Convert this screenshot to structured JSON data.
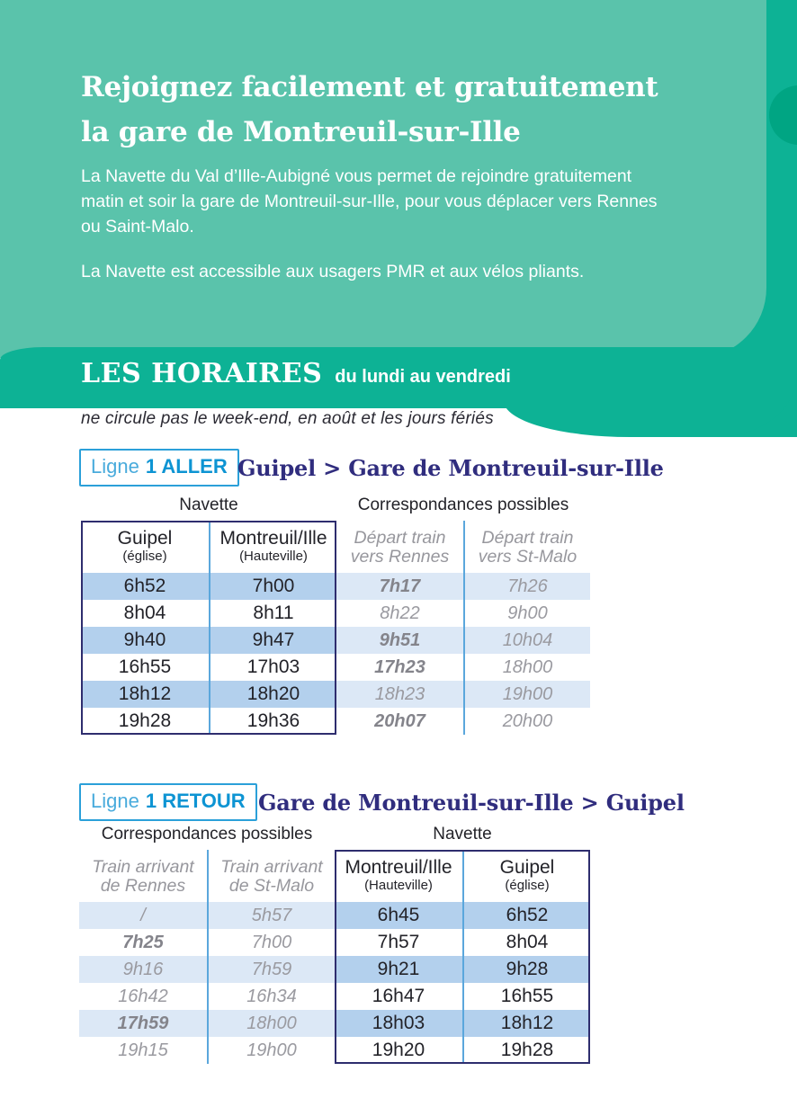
{
  "colors": {
    "teal": "#5ac3ab",
    "green": "#0db295",
    "dark_green_circle": "#00a583",
    "heading_indigo": "#302d7e",
    "badge_blue": "#0d94d3",
    "badge_blue_light": "#49abdc",
    "table_border": "#2e2d6e",
    "divider_blue": "#5ba7dc",
    "shade_strong": "#b3d0ed",
    "shade_light": "#dce8f6",
    "text_dark": "#232329",
    "text_gray": "#97979d"
  },
  "hero": {
    "title_line1": "Rejoignez facilement et gratuitement",
    "title_line2": "la gare de Montreuil-sur-Ille",
    "paragraph1_lines": [
      "La Navette du Val d’Ille-Aubigné vous permet de rejoindre gratuitement",
      "matin et soir la gare de Montreuil-sur-Ille, pour vous déplacer vers Rennes",
      "ou Saint-Malo."
    ],
    "paragraph2": "La Navette est accessible aux usagers PMR et aux vélos pliants."
  },
  "horaires": {
    "title": "LES HORAIRES",
    "subtitle": "du lundi au vendredi",
    "note": "ne circule pas le week-end, en août et les jours fériés"
  },
  "aller": {
    "badge_prefix": "Ligne",
    "badge_label": "1 ALLER",
    "heading": "Guipel > Gare de Montreuil-sur-Ille",
    "group_navette": "Navette",
    "group_correspondances": "Correspondances possibles",
    "col_types": [
      "nav",
      "nav",
      "cor",
      "cor"
    ],
    "headers": [
      {
        "line1": "Guipel",
        "line2": "(église)"
      },
      {
        "line1": "Montreuil/Ille",
        "line2": "(Hauteville)"
      },
      {
        "line1": "Départ train",
        "line2": "vers Rennes"
      },
      {
        "line1": "Départ train",
        "line2": "vers St-Malo"
      }
    ],
    "rows": [
      [
        {
          "t": "6h52"
        },
        {
          "t": "7h00"
        },
        {
          "t": "7h17",
          "bold": true
        },
        {
          "t": "7h26"
        }
      ],
      [
        {
          "t": "8h04"
        },
        {
          "t": "8h11"
        },
        {
          "t": "8h22"
        },
        {
          "t": "9h00"
        }
      ],
      [
        {
          "t": "9h40"
        },
        {
          "t": "9h47"
        },
        {
          "t": "9h51",
          "bold": true
        },
        {
          "t": "10h04"
        }
      ],
      [
        {
          "t": "16h55"
        },
        {
          "t": "17h03"
        },
        {
          "t": "17h23",
          "bold": true
        },
        {
          "t": "18h00"
        }
      ],
      [
        {
          "t": "18h12"
        },
        {
          "t": "18h20"
        },
        {
          "t": "18h23"
        },
        {
          "t": "19h00"
        }
      ],
      [
        {
          "t": "19h28"
        },
        {
          "t": "19h36"
        },
        {
          "t": "20h07",
          "bold": true
        },
        {
          "t": "20h00"
        }
      ]
    ]
  },
  "retour": {
    "badge_prefix": "Ligne",
    "badge_label": "1 RETOUR",
    "heading": "Gare de Montreuil-sur-Ille > Guipel",
    "group_navette": "Navette",
    "group_correspondances": "Correspondances possibles",
    "col_types": [
      "cor",
      "cor",
      "nav",
      "nav"
    ],
    "headers": [
      {
        "line1": "Train arrivant",
        "line2": "de Rennes"
      },
      {
        "line1": "Train arrivant",
        "line2": "de St-Malo"
      },
      {
        "line1": "Montreuil/Ille",
        "line2": "(Hauteville)"
      },
      {
        "line1": "Guipel",
        "line2": "(église)"
      }
    ],
    "rows": [
      [
        {
          "t": "/"
        },
        {
          "t": "5h57"
        },
        {
          "t": "6h45"
        },
        {
          "t": "6h52"
        }
      ],
      [
        {
          "t": "7h25",
          "bold": true
        },
        {
          "t": "7h00"
        },
        {
          "t": "7h57"
        },
        {
          "t": "8h04"
        }
      ],
      [
        {
          "t": "9h16"
        },
        {
          "t": "7h59"
        },
        {
          "t": "9h21"
        },
        {
          "t": "9h28"
        }
      ],
      [
        {
          "t": "16h42"
        },
        {
          "t": "16h34"
        },
        {
          "t": "16h47"
        },
        {
          "t": "16h55"
        }
      ],
      [
        {
          "t": "17h59",
          "bold": true
        },
        {
          "t": "18h00"
        },
        {
          "t": "18h03"
        },
        {
          "t": "18h12"
        }
      ],
      [
        {
          "t": "19h15"
        },
        {
          "t": "19h00"
        },
        {
          "t": "19h20"
        },
        {
          "t": "19h28"
        }
      ]
    ]
  }
}
